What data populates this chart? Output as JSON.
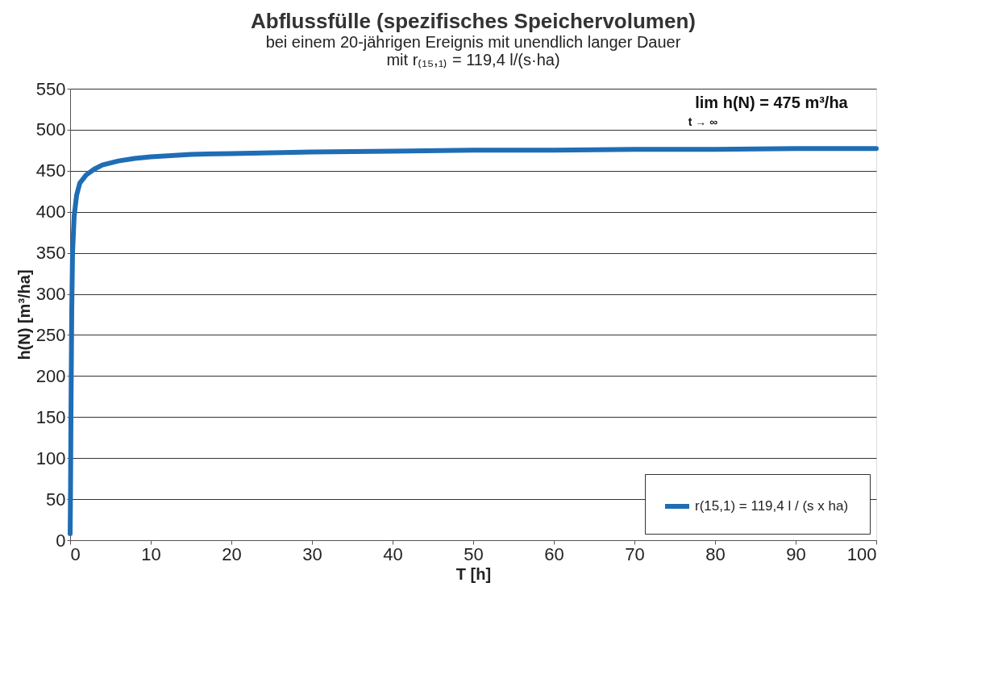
{
  "chart_data": {
    "type": "line",
    "title": "Abflussfülle (spezifisches Speichervolumen)",
    "subtitle": [
      "bei einem 20-jährigen Ereignis mit unendlich langer Dauer",
      "mit r₍₁₅,₁₎ = 119,4 l/(s·ha)"
    ],
    "xlabel": "T [h]",
    "ylabel": "h(N)  [m³/ha]",
    "annotations": [
      "lim h(N) = 475 m³/ha",
      "t → ∞"
    ],
    "xlim": [
      0,
      100
    ],
    "xticks": [
      0,
      10,
      20,
      30,
      40,
      50,
      60,
      70,
      80,
      90,
      100
    ],
    "ylim": [
      0,
      550
    ],
    "yticks": [
      0,
      50,
      100,
      150,
      200,
      250,
      300,
      350,
      400,
      450,
      500,
      550
    ],
    "grid": "y",
    "legend": "bottom right",
    "marker": "none",
    "line_style": "solid",
    "series": [
      {
        "name": "r(15,1) = 119,4  l / (s x ha)",
        "color": "#1f6db5",
        "x": [
          0,
          0.05,
          0.1,
          0.2,
          0.3,
          0.5,
          0.8,
          1.2,
          2,
          3,
          4,
          6,
          8,
          10,
          15,
          20,
          30,
          40,
          50,
          60,
          70,
          80,
          90,
          100
        ],
        "values": [
          8,
          60,
          150,
          280,
          350,
          395,
          420,
          435,
          445,
          452,
          457,
          462,
          465,
          467,
          470,
          471,
          473,
          474,
          475,
          475,
          476,
          476,
          477,
          477
        ]
      }
    ]
  }
}
